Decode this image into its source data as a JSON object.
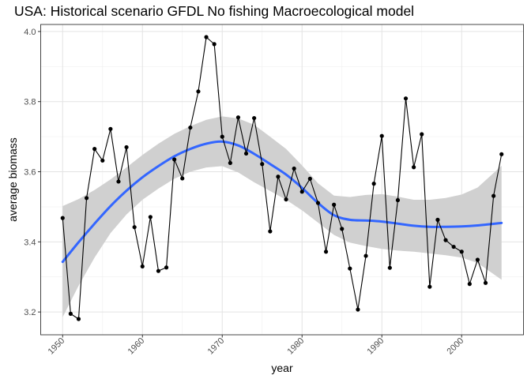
{
  "chart_data": {
    "type": "line",
    "title": "USA: Historical scenario GFDL No fishing Macroecological model",
    "xlabel": "year",
    "ylabel": "average biomass",
    "xlim": [
      1947.25,
      2007.75
    ],
    "ylim": [
      3.135,
      4.02
    ],
    "x_ticks": [
      1950,
      1960,
      1970,
      1980,
      1990,
      2000
    ],
    "x_tick_labels": [
      "1950",
      "1960",
      "1970",
      "1980",
      "1990",
      "2000"
    ],
    "y_ticks": [
      3.2,
      3.4,
      3.6,
      3.8,
      4.0
    ],
    "y_tick_labels": [
      "3.2",
      "3.4",
      "3.6",
      "3.8",
      "4.0"
    ],
    "grid": true,
    "legend": "none",
    "series": [
      {
        "type": "line+points",
        "color": "#000000",
        "x": [
          1950,
          1951,
          1952,
          1953,
          1954,
          1955,
          1956,
          1957,
          1958,
          1959,
          1960,
          1961,
          1962,
          1963,
          1964,
          1965,
          1966,
          1967,
          1968,
          1969,
          1970,
          1971,
          1972,
          1973,
          1974,
          1975,
          1976,
          1977,
          1978,
          1979,
          1980,
          1981,
          1982,
          1983,
          1984,
          1985,
          1986,
          1987,
          1988,
          1989,
          1990,
          1991,
          1992,
          1993,
          1994,
          1995,
          1996,
          1997,
          1998,
          1999,
          2000,
          2001,
          2002,
          2003,
          2004,
          2005
        ],
        "values": [
          3.468,
          3.195,
          3.18,
          3.525,
          3.665,
          3.632,
          3.722,
          3.572,
          3.67,
          3.442,
          3.33,
          3.471,
          3.317,
          3.327,
          3.635,
          3.581,
          3.726,
          3.829,
          3.984,
          3.964,
          3.7,
          3.625,
          3.755,
          3.652,
          3.753,
          3.622,
          3.43,
          3.586,
          3.521,
          3.609,
          3.543,
          3.58,
          3.511,
          3.372,
          3.506,
          3.437,
          3.324,
          3.207,
          3.36,
          3.566,
          3.702,
          3.326,
          3.519,
          3.809,
          3.613,
          3.707,
          3.272,
          3.463,
          3.405,
          3.386,
          3.372,
          3.28,
          3.349,
          3.283,
          3.531,
          3.65
        ]
      },
      {
        "type": "smooth",
        "color": "#3366ff",
        "x": [
          1950,
          1952,
          1954,
          1956,
          1958,
          1960,
          1962,
          1964,
          1966,
          1968,
          1970,
          1972,
          1974,
          1976,
          1978,
          1980,
          1982,
          1984,
          1986,
          1988,
          1990,
          1992,
          1994,
          1996,
          1998,
          2000,
          2002,
          2005
        ],
        "values": [
          3.343,
          3.399,
          3.452,
          3.502,
          3.546,
          3.584,
          3.616,
          3.644,
          3.665,
          3.68,
          3.686,
          3.675,
          3.651,
          3.622,
          3.592,
          3.554,
          3.511,
          3.476,
          3.463,
          3.461,
          3.458,
          3.452,
          3.446,
          3.443,
          3.443,
          3.444,
          3.447,
          3.454
        ],
        "ci_lower": [
          3.185,
          3.275,
          3.355,
          3.425,
          3.478,
          3.52,
          3.552,
          3.58,
          3.6,
          3.612,
          3.616,
          3.598,
          3.57,
          3.545,
          3.52,
          3.49,
          3.455,
          3.42,
          3.398,
          3.388,
          3.38,
          3.375,
          3.372,
          3.367,
          3.362,
          3.355,
          3.34,
          3.292
        ],
        "ci_upper": [
          3.502,
          3.522,
          3.548,
          3.578,
          3.612,
          3.648,
          3.68,
          3.708,
          3.73,
          3.748,
          3.758,
          3.752,
          3.734,
          3.7,
          3.665,
          3.618,
          3.567,
          3.532,
          3.528,
          3.534,
          3.536,
          3.529,
          3.52,
          3.52,
          3.525,
          3.535,
          3.555,
          3.617
        ],
        "ci_color": "#d0d0d0"
      }
    ]
  }
}
